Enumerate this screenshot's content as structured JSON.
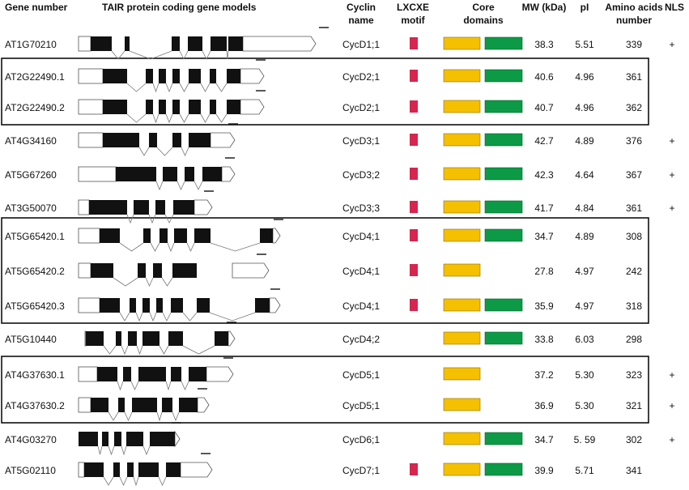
{
  "headers": {
    "gene_number": "Gene number",
    "models": "TAIR protein coding gene models",
    "cyclin_line1": "Cyclin",
    "cyclin_line2": "name",
    "motif_line1": "LXCXE",
    "motif_line2": "motif",
    "core_line1": "Core",
    "core_line2": "domains",
    "mw": "MW (kDa)",
    "pi": "pI",
    "aa_line1": "Amino acids",
    "aa_line2": "number",
    "nls": "NLS"
  },
  "colors": {
    "motif": "#d6254f",
    "domain_a": "#f5c000",
    "domain_b": "#0c9a46",
    "exon": "#111111",
    "utr_fill": "#ffffff",
    "box_border": "#111111"
  },
  "groups": [
    {
      "first_row": 1,
      "last_row": 2
    },
    {
      "first_row": 6,
      "last_row": 8
    },
    {
      "first_row": 10,
      "last_row": 11
    }
  ],
  "rows": [
    {
      "gene": "AT1G70210",
      "cyclin": "CycD1;1",
      "lxcxe": true,
      "domains": 2,
      "mw": "38.3",
      "pi": "5.51",
      "aa": "339",
      "nls": "+"
    },
    {
      "gene": "AT2G22490.1",
      "cyclin": "CycD2;1",
      "lxcxe": true,
      "domains": 2,
      "mw": "40.6",
      "pi": "4.96",
      "aa": "361",
      "nls": ""
    },
    {
      "gene": "AT2G22490.2",
      "cyclin": "CycD2;1",
      "lxcxe": true,
      "domains": 2,
      "mw": "40.7",
      "pi": "4.96",
      "aa": "362",
      "nls": ""
    },
    {
      "gene": "AT4G34160",
      "cyclin": "CycD3;1",
      "lxcxe": true,
      "domains": 2,
      "mw": "42.7",
      "pi": "4.89",
      "aa": "376",
      "nls": "+"
    },
    {
      "gene": "AT5G67260",
      "cyclin": "CycD3;2",
      "lxcxe": true,
      "domains": 2,
      "mw": "42.3",
      "pi": "4.64",
      "aa": "367",
      "nls": "+"
    },
    {
      "gene": "AT3G50070",
      "cyclin": "CycD3;3",
      "lxcxe": true,
      "domains": 2,
      "mw": "41.7",
      "pi": "4.84",
      "aa": "361",
      "nls": "+"
    },
    {
      "gene": "AT5G65420.1",
      "cyclin": "CycD4;1",
      "lxcxe": true,
      "domains": 2,
      "mw": "34.7",
      "pi": "4.89",
      "aa": "308",
      "nls": ""
    },
    {
      "gene": "AT5G65420.2",
      "cyclin": "CycD4;1",
      "lxcxe": true,
      "domains": 1,
      "mw": "27.8",
      "pi": "4.97",
      "aa": "242",
      "nls": ""
    },
    {
      "gene": "AT5G65420.3",
      "cyclin": "CycD4;1",
      "lxcxe": true,
      "domains": 2,
      "mw": "35.9",
      "pi": "4.97",
      "aa": "318",
      "nls": ""
    },
    {
      "gene": "AT5G10440",
      "cyclin": "CycD4;2",
      "lxcxe": false,
      "domains": 2,
      "mw": "33.8",
      "pi": "6.03",
      "aa": "298",
      "nls": ""
    },
    {
      "gene": "AT4G37630.1",
      "cyclin": "CycD5;1",
      "lxcxe": false,
      "domains": 1,
      "mw": "37.2",
      "pi": "5.30",
      "aa": "323",
      "nls": "+"
    },
    {
      "gene": "AT4G37630.2",
      "cyclin": "CycD5;1",
      "lxcxe": false,
      "domains": 1,
      "mw": "36.9",
      "pi": "5.30",
      "aa": "321",
      "nls": "+"
    },
    {
      "gene": "AT4G03270",
      "cyclin": "CycD6;1",
      "lxcxe": false,
      "domains": 2,
      "mw": "34.7",
      "pi": "5. 59",
      "aa": "302",
      "nls": "+"
    },
    {
      "gene": "AT5G02110",
      "cyclin": "CycD7;1",
      "lxcxe": true,
      "domains": 2,
      "mw": "39.9",
      "pi": "5.71",
      "aa": "341",
      "nls": ""
    }
  ]
}
